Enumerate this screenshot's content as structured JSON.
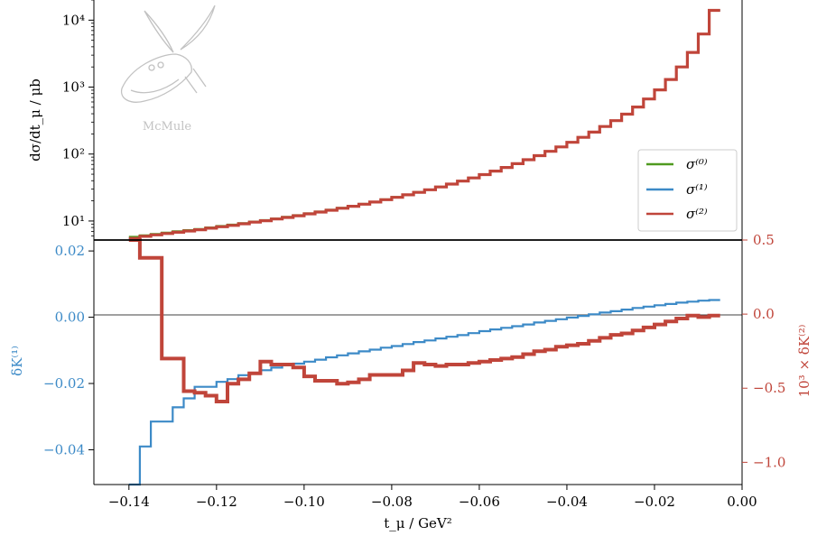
{
  "chart_data": [
    {
      "type": "line",
      "panel": "upper",
      "ylabel": "dσ/dt_μ / μb",
      "yscale": "log",
      "ylim": [
        5.2,
        20000
      ],
      "xlim": [
        -0.148,
        0.0
      ],
      "yticks": [
        {
          "value": 10,
          "label": "10¹"
        },
        {
          "value": 100,
          "label": "10²"
        },
        {
          "value": 1000,
          "label": "10³"
        },
        {
          "value": 10000,
          "label": "10⁴"
        }
      ],
      "legend_position": "lower-right",
      "logo_text": "McMule",
      "x_edges": [
        -0.14,
        -0.1375,
        -0.135,
        -0.1325,
        -0.13,
        -0.1275,
        -0.125,
        -0.1225,
        -0.12,
        -0.1175,
        -0.115,
        -0.1125,
        -0.11,
        -0.1075,
        -0.105,
        -0.1025,
        -0.1,
        -0.0975,
        -0.095,
        -0.0925,
        -0.09,
        -0.0875,
        -0.085,
        -0.0825,
        -0.08,
        -0.0775,
        -0.075,
        -0.0725,
        -0.07,
        -0.0675,
        -0.065,
        -0.0625,
        -0.06,
        -0.0575,
        -0.055,
        -0.0525,
        -0.05,
        -0.0475,
        -0.045,
        -0.0425,
        -0.04,
        -0.0375,
        -0.035,
        -0.0325,
        -0.03,
        -0.0275,
        -0.025,
        -0.0225,
        -0.02,
        -0.0175,
        -0.015,
        -0.0125,
        -0.01,
        -0.0075,
        -0.005
      ],
      "series": [
        {
          "name": "σ⁽⁰⁾",
          "color": "#4f9a1f",
          "width": 2.2,
          "values": [
            5.8,
            6.1,
            6.4,
            6.7,
            7.0,
            7.3,
            7.6,
            8.0,
            8.4,
            8.8,
            9.3,
            9.8,
            10.3,
            10.9,
            11.5,
            12.2,
            13.0,
            13.8,
            14.7,
            15.7,
            16.8,
            18.0,
            19.4,
            21.0,
            22.8,
            24.8,
            27.0,
            29.5,
            32.4,
            35.8,
            39.7,
            44.2,
            49.5,
            55.8,
            63.2,
            72.0,
            82.5,
            95.0,
            110.0,
            128.0,
            150.0,
            178.0,
            213.0,
            258.0,
            316.0,
            395.0,
            505.0,
            665.0,
            910.0,
            1300.0,
            2000.0,
            3300.0,
            6200.0,
            14000.0
          ]
        },
        {
          "name": "σ⁽¹⁾",
          "color": "#3c8ac7",
          "width": 2.2,
          "values": [
            5.5,
            5.9,
            6.2,
            6.5,
            6.8,
            7.1,
            7.4,
            7.8,
            8.2,
            8.6,
            9.1,
            9.6,
            10.1,
            10.7,
            11.3,
            12.0,
            12.8,
            13.6,
            14.5,
            15.5,
            16.6,
            17.8,
            19.2,
            20.8,
            22.6,
            24.6,
            26.8,
            29.3,
            32.2,
            35.6,
            39.5,
            44.0,
            49.3,
            55.6,
            63.0,
            71.8,
            82.3,
            94.8,
            109.8,
            127.8,
            149.8,
            177.8,
            212.8,
            257.8,
            315.8,
            394.8,
            504.8,
            664.8,
            909.8,
            1299.0,
            1999.0,
            3299.0,
            6199.0,
            13990.0
          ]
        },
        {
          "name": "σ⁽²⁾",
          "color": "#c0453a",
          "width": 3.2,
          "values": [
            5.5,
            5.9,
            6.2,
            6.5,
            6.8,
            7.1,
            7.4,
            7.8,
            8.2,
            8.6,
            9.1,
            9.6,
            10.1,
            10.7,
            11.3,
            12.0,
            12.8,
            13.6,
            14.5,
            15.5,
            16.6,
            17.8,
            19.2,
            20.8,
            22.6,
            24.6,
            26.8,
            29.3,
            32.2,
            35.6,
            39.5,
            44.0,
            49.3,
            55.6,
            63.0,
            71.8,
            82.3,
            94.8,
            109.8,
            127.8,
            149.8,
            177.8,
            212.8,
            257.8,
            315.8,
            394.8,
            504.8,
            664.8,
            909.8,
            1299.0,
            1999.0,
            3299.0,
            6199.0,
            13990.0
          ]
        }
      ]
    },
    {
      "type": "line",
      "panel": "lower",
      "xlabel": "t_μ / GeV²",
      "xlim": [
        -0.148,
        0.0
      ],
      "xticks": [
        -0.14,
        -0.12,
        -0.1,
        -0.08,
        -0.06,
        -0.04,
        -0.02,
        0.0
      ],
      "xticklabels": [
        "−0.14",
        "−0.12",
        "−0.10",
        "−0.08",
        "−0.06",
        "−0.04",
        "−0.02",
        "0.00"
      ],
      "left_axis": {
        "label": "δK⁽¹⁾",
        "color": "#3c8ac7",
        "ylim": [
          -0.0505,
          0.0233
        ],
        "ticks": [
          0.02,
          0.0,
          -0.02,
          -0.04
        ],
        "ticklabels": [
          "0.02",
          "0.00",
          "−0.02",
          "−0.04"
        ]
      },
      "right_axis": {
        "label": "10³ × δK⁽²⁾",
        "color": "#c0453a",
        "ylim": [
          -1.15,
          0.5
        ],
        "ticks": [
          0.5,
          0.0,
          -0.5,
          -1.0
        ],
        "ticklabels": [
          "0.5",
          "0.0",
          "−0.5",
          "−1.0"
        ]
      },
      "zero_line": true,
      "x_edges": [
        -0.14,
        -0.1375,
        -0.135,
        -0.1325,
        -0.13,
        -0.1275,
        -0.125,
        -0.1225,
        -0.12,
        -0.1175,
        -0.115,
        -0.1125,
        -0.11,
        -0.1075,
        -0.105,
        -0.1025,
        -0.1,
        -0.0975,
        -0.095,
        -0.0925,
        -0.09,
        -0.0875,
        -0.085,
        -0.0825,
        -0.08,
        -0.0775,
        -0.075,
        -0.0725,
        -0.07,
        -0.0675,
        -0.065,
        -0.0625,
        -0.06,
        -0.0575,
        -0.055,
        -0.0525,
        -0.05,
        -0.0475,
        -0.045,
        -0.0425,
        -0.04,
        -0.0375,
        -0.035,
        -0.0325,
        -0.03,
        -0.0275,
        -0.025,
        -0.0225,
        -0.02,
        -0.0175,
        -0.015,
        -0.0125,
        -0.01,
        -0.0075,
        -0.005
      ],
      "series": [
        {
          "name": "δK⁽¹⁾",
          "axis": "left",
          "color": "#3c8ac7",
          "width": 2.2,
          "values": [
            -0.052,
            -0.039,
            -0.0315,
            -0.0315,
            -0.0272,
            -0.0245,
            -0.021,
            -0.021,
            -0.0195,
            -0.0187,
            -0.0175,
            -0.0168,
            -0.016,
            -0.0152,
            -0.0145,
            -0.014,
            -0.0134,
            -0.0128,
            -0.0121,
            -0.0115,
            -0.0109,
            -0.0103,
            -0.0098,
            -0.0092,
            -0.0087,
            -0.0081,
            -0.0075,
            -0.007,
            -0.0064,
            -0.0059,
            -0.0054,
            -0.0048,
            -0.0042,
            -0.0037,
            -0.0032,
            -0.0027,
            -0.0022,
            -0.0016,
            -0.0011,
            -0.0006,
            -0.0001,
            0.0004,
            0.0009,
            0.0014,
            0.0018,
            0.0023,
            0.0028,
            0.0032,
            0.0036,
            0.004,
            0.0044,
            0.0047,
            0.005,
            0.0052
          ]
        },
        {
          "name": "10³ × δK⁽²⁾",
          "axis": "right",
          "color": "#c0453a",
          "width": 4,
          "values": [
            0.52,
            0.38,
            0.38,
            -0.3,
            -0.3,
            -0.52,
            -0.53,
            -0.55,
            -0.59,
            -0.47,
            -0.44,
            -0.4,
            -0.32,
            -0.34,
            -0.34,
            -0.36,
            -0.42,
            -0.45,
            -0.45,
            -0.47,
            -0.46,
            -0.44,
            -0.41,
            -0.41,
            -0.41,
            -0.38,
            -0.33,
            -0.34,
            -0.35,
            -0.34,
            -0.34,
            -0.33,
            -0.32,
            -0.31,
            -0.3,
            -0.29,
            -0.27,
            -0.25,
            -0.24,
            -0.22,
            -0.21,
            -0.2,
            -0.18,
            -0.16,
            -0.14,
            -0.13,
            -0.11,
            -0.09,
            -0.07,
            -0.05,
            -0.03,
            -0.01,
            -0.02,
            -0.01
          ]
        }
      ]
    }
  ]
}
